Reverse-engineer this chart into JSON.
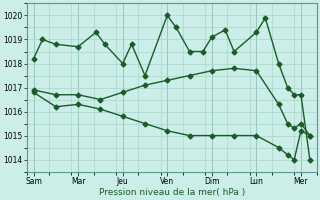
{
  "bg_color": "#cceee8",
  "grid_color": "#aad4cc",
  "line_color": "#1a5c28",
  "xlabel": "Pression niveau de la mer( hPa )",
  "ylim": [
    1013.5,
    1020.5
  ],
  "yticks": [
    1014,
    1015,
    1016,
    1017,
    1018,
    1019,
    1020
  ],
  "x_labels": [
    "Sam",
    "Mar",
    "Jeu",
    "Ven",
    "Dim",
    "Lun",
    "Mer"
  ],
  "x_positions": [
    0,
    1,
    2,
    3,
    4,
    5,
    6
  ],
  "line1_x": [
    0.0,
    0.2,
    0.5,
    1.0,
    1.4,
    1.6,
    2.0,
    2.2,
    2.5,
    3.0,
    3.2,
    3.5,
    3.8,
    4.0,
    4.3,
    4.5,
    5.0,
    5.2,
    5.5,
    5.7,
    5.85,
    6.0,
    6.2
  ],
  "line1_y": [
    1018.2,
    1019.0,
    1018.8,
    1018.7,
    1019.3,
    1018.8,
    1018.0,
    1018.8,
    1017.5,
    1020.0,
    1019.5,
    1018.5,
    1018.5,
    1019.1,
    1019.4,
    1018.5,
    1019.3,
    1019.9,
    1018.0,
    1017.0,
    1016.7,
    1016.7,
    1014.0
  ],
  "line2_x": [
    0.0,
    0.5,
    1.0,
    1.5,
    2.0,
    2.5,
    3.0,
    3.5,
    4.0,
    4.5,
    5.0,
    5.5,
    5.7,
    5.85,
    6.0,
    6.2
  ],
  "line2_y": [
    1016.9,
    1016.7,
    1016.7,
    1016.5,
    1016.8,
    1017.1,
    1017.3,
    1017.5,
    1017.7,
    1017.8,
    1017.7,
    1016.3,
    1015.5,
    1015.3,
    1015.5,
    1015.0
  ],
  "line3_x": [
    0.0,
    0.5,
    1.0,
    1.5,
    2.0,
    2.5,
    3.0,
    3.5,
    4.0,
    4.5,
    5.0,
    5.5,
    5.7,
    5.85,
    6.0,
    6.2
  ],
  "line3_y": [
    1016.8,
    1016.2,
    1016.3,
    1016.1,
    1015.8,
    1015.5,
    1015.2,
    1015.0,
    1015.0,
    1015.0,
    1015.0,
    1014.5,
    1014.2,
    1014.0,
    1015.2,
    1015.0
  ],
  "marker_size": 2.5,
  "linewidth": 1.0,
  "tick_fontsize": 5.5,
  "xlabel_fontsize": 6.5
}
